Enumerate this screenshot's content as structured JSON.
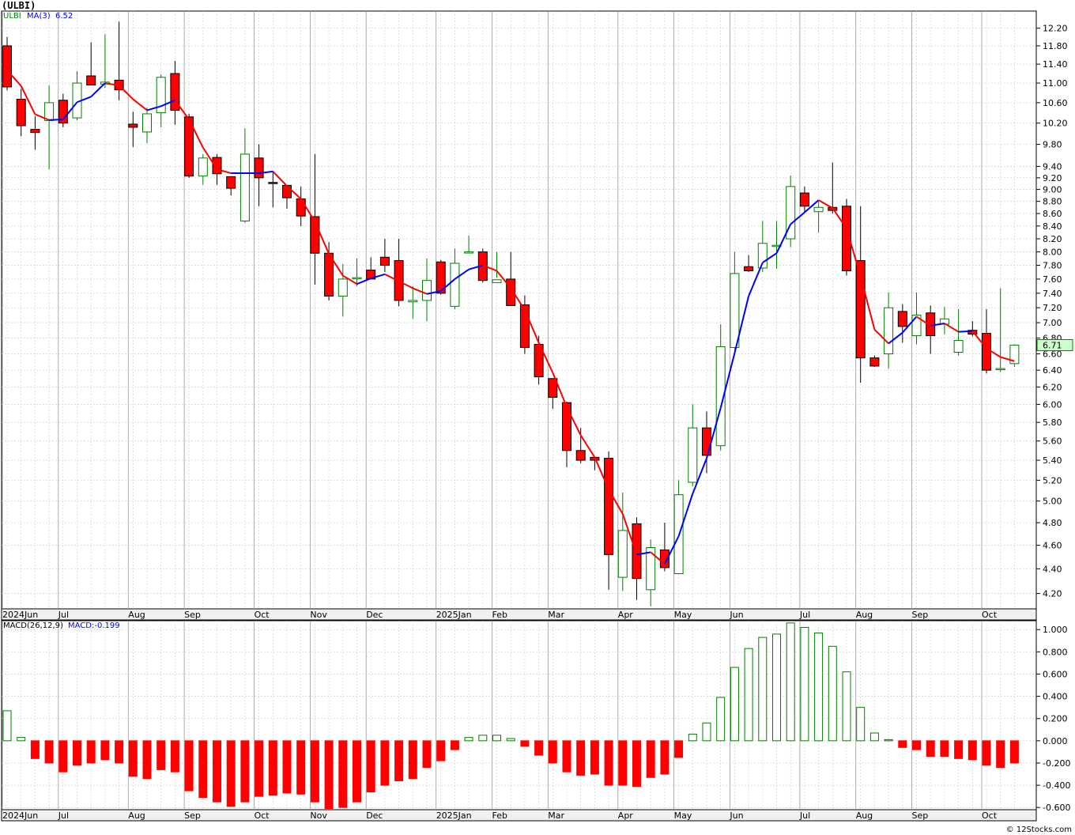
{
  "title": "(ULBI)",
  "credit": "© 12Stocks.com",
  "colors": {
    "up": "#008000",
    "down": "#ff0000",
    "ma_up": "#0000ff",
    "ma_down": "#ff0000",
    "grid": "#cccccc"
  },
  "legend": {
    "symbol": "ULBI",
    "ma_label": "MA(3)",
    "ma_value": "6.52",
    "macd_label": "MACD(26,12,9)",
    "macd_value": "MACD:-0.199"
  },
  "last_price": "6.71",
  "chart_data": [
    {
      "type": "candlestick",
      "title": "ULBI",
      "scale": "log",
      "ylim": [
        4.08,
        12.6
      ],
      "y_ticks": [
        "12.20",
        "11.80",
        "11.40",
        "11.00",
        "10.60",
        "10.20",
        "9.80",
        "9.40",
        "9.20",
        "9.00",
        "8.80",
        "8.60",
        "8.40",
        "8.20",
        "8.00",
        "7.80",
        "7.60",
        "7.40",
        "7.20",
        "7.00",
        "6.80",
        "6.60",
        "6.40",
        "6.20",
        "6.00",
        "5.80",
        "5.60",
        "5.40",
        "5.20",
        "5.00",
        "4.80",
        "4.60",
        "4.40",
        "4.20"
      ],
      "x_labels": [
        "2024Jun",
        "Jul",
        "Aug",
        "Sep",
        "Oct",
        "Nov",
        "Dec",
        "2025Jan",
        "Feb",
        "Mar",
        "Apr",
        "May",
        "Jun",
        "Jul",
        "Aug",
        "Sep",
        "Oct"
      ],
      "x_label_weeks": [
        0,
        4,
        9,
        13,
        18,
        22,
        26,
        31,
        35,
        39,
        44,
        48,
        52,
        57,
        61,
        65,
        70
      ],
      "candles": [
        {
          "o": 11.8,
          "h": 12.0,
          "l": 10.85,
          "c": 10.92
        },
        {
          "o": 10.67,
          "h": 10.88,
          "l": 9.95,
          "c": 10.15
        },
        {
          "o": 10.08,
          "h": 10.33,
          "l": 9.7,
          "c": 10.02
        },
        {
          "o": 10.25,
          "h": 10.95,
          "l": 9.35,
          "c": 10.6
        },
        {
          "o": 10.65,
          "h": 10.78,
          "l": 10.12,
          "c": 10.2
        },
        {
          "o": 10.3,
          "h": 11.25,
          "l": 10.25,
          "c": 11.0
        },
        {
          "o": 11.15,
          "h": 11.88,
          "l": 10.95,
          "c": 10.96
        },
        {
          "o": 10.98,
          "h": 12.06,
          "l": 10.9,
          "c": 11.02
        },
        {
          "o": 11.06,
          "h": 12.35,
          "l": 10.65,
          "c": 10.86
        },
        {
          "o": 10.18,
          "h": 10.42,
          "l": 9.75,
          "c": 10.12
        },
        {
          "o": 10.03,
          "h": 10.5,
          "l": 9.82,
          "c": 10.38
        },
        {
          "o": 10.4,
          "h": 11.18,
          "l": 10.12,
          "c": 11.12
        },
        {
          "o": 11.2,
          "h": 11.47,
          "l": 10.17,
          "c": 10.45
        },
        {
          "o": 10.32,
          "h": 10.38,
          "l": 9.2,
          "c": 9.23
        },
        {
          "o": 9.23,
          "h": 9.62,
          "l": 9.08,
          "c": 9.55
        },
        {
          "o": 9.56,
          "h": 9.62,
          "l": 9.08,
          "c": 9.27
        },
        {
          "o": 9.22,
          "h": 9.22,
          "l": 8.9,
          "c": 9.02
        },
        {
          "o": 8.48,
          "h": 10.1,
          "l": 8.45,
          "c": 9.62
        },
        {
          "o": 9.55,
          "h": 9.8,
          "l": 8.72,
          "c": 9.2
        },
        {
          "o": 9.12,
          "h": 9.32,
          "l": 8.7,
          "c": 9.1
        },
        {
          "o": 9.07,
          "h": 9.07,
          "l": 8.68,
          "c": 8.86
        },
        {
          "o": 8.84,
          "h": 9.05,
          "l": 8.4,
          "c": 8.56
        },
        {
          "o": 8.55,
          "h": 9.62,
          "l": 7.52,
          "c": 7.98
        },
        {
          "o": 7.98,
          "h": 8.15,
          "l": 7.3,
          "c": 7.36
        },
        {
          "o": 7.36,
          "h": 7.82,
          "l": 7.08,
          "c": 7.6
        },
        {
          "o": 7.62,
          "h": 7.9,
          "l": 7.5,
          "c": 7.62
        },
        {
          "o": 7.73,
          "h": 7.92,
          "l": 7.6,
          "c": 7.6
        },
        {
          "o": 7.92,
          "h": 8.2,
          "l": 7.7,
          "c": 7.8
        },
        {
          "o": 7.87,
          "h": 8.2,
          "l": 7.22,
          "c": 7.3
        },
        {
          "o": 7.28,
          "h": 7.5,
          "l": 7.05,
          "c": 7.3
        },
        {
          "o": 7.3,
          "h": 7.9,
          "l": 7.02,
          "c": 7.58
        },
        {
          "o": 7.85,
          "h": 7.88,
          "l": 7.38,
          "c": 7.4
        },
        {
          "o": 7.22,
          "h": 8.05,
          "l": 7.18,
          "c": 7.83
        },
        {
          "o": 8.0,
          "h": 8.25,
          "l": 8.0,
          "c": 8.0
        },
        {
          "o": 8.0,
          "h": 8.05,
          "l": 7.55,
          "c": 7.58
        },
        {
          "o": 7.55,
          "h": 8.0,
          "l": 7.62,
          "c": 7.59
        },
        {
          "o": 7.6,
          "h": 8.0,
          "l": 7.25,
          "c": 7.23
        },
        {
          "o": 7.24,
          "h": 7.37,
          "l": 6.6,
          "c": 6.68
        },
        {
          "o": 6.72,
          "h": 6.83,
          "l": 6.23,
          "c": 6.32
        },
        {
          "o": 6.3,
          "h": 6.3,
          "l": 5.95,
          "c": 6.08
        },
        {
          "o": 6.02,
          "h": 6.03,
          "l": 5.33,
          "c": 5.5
        },
        {
          "o": 5.5,
          "h": 5.74,
          "l": 5.37,
          "c": 5.4
        },
        {
          "o": 5.43,
          "h": 5.43,
          "l": 5.3,
          "c": 5.4
        },
        {
          "o": 5.42,
          "h": 5.49,
          "l": 4.23,
          "c": 4.52
        },
        {
          "o": 4.33,
          "h": 5.08,
          "l": 4.22,
          "c": 4.73
        },
        {
          "o": 4.79,
          "h": 4.85,
          "l": 4.15,
          "c": 4.32
        },
        {
          "o": 4.23,
          "h": 4.65,
          "l": 4.1,
          "c": 4.58
        },
        {
          "o": 4.56,
          "h": 4.8,
          "l": 4.38,
          "c": 4.41
        },
        {
          "o": 4.36,
          "h": 5.2,
          "l": 4.36,
          "c": 5.06
        },
        {
          "o": 5.18,
          "h": 6.0,
          "l": 5.14,
          "c": 5.74
        },
        {
          "o": 5.74,
          "h": 5.92,
          "l": 5.27,
          "c": 5.45
        },
        {
          "o": 5.55,
          "h": 6.98,
          "l": 5.5,
          "c": 6.69
        },
        {
          "o": 6.68,
          "h": 8.0,
          "l": 6.66,
          "c": 7.68
        },
        {
          "o": 7.78,
          "h": 7.95,
          "l": 7.7,
          "c": 7.72
        },
        {
          "o": 7.76,
          "h": 8.48,
          "l": 7.7,
          "c": 8.13
        },
        {
          "o": 8.1,
          "h": 8.48,
          "l": 7.75,
          "c": 8.1
        },
        {
          "o": 8.2,
          "h": 9.24,
          "l": 8.07,
          "c": 9.05
        },
        {
          "o": 8.94,
          "h": 9.05,
          "l": 8.62,
          "c": 8.72
        },
        {
          "o": 8.63,
          "h": 8.8,
          "l": 8.3,
          "c": 8.7
        },
        {
          "o": 8.7,
          "h": 9.47,
          "l": 8.6,
          "c": 8.65
        },
        {
          "o": 8.72,
          "h": 8.84,
          "l": 7.65,
          "c": 7.72
        },
        {
          "o": 7.87,
          "h": 8.72,
          "l": 6.25,
          "c": 6.55
        },
        {
          "o": 6.55,
          "h": 6.58,
          "l": 6.44,
          "c": 6.45
        },
        {
          "o": 6.6,
          "h": 7.41,
          "l": 6.42,
          "c": 7.2
        },
        {
          "o": 7.15,
          "h": 7.25,
          "l": 6.74,
          "c": 6.95
        },
        {
          "o": 6.83,
          "h": 7.41,
          "l": 6.72,
          "c": 7.1
        },
        {
          "o": 7.13,
          "h": 7.23,
          "l": 6.6,
          "c": 6.83
        },
        {
          "o": 6.98,
          "h": 7.21,
          "l": 6.85,
          "c": 7.05
        },
        {
          "o": 6.62,
          "h": 7.18,
          "l": 6.58,
          "c": 6.77
        },
        {
          "o": 6.9,
          "h": 7.02,
          "l": 6.82,
          "c": 6.85
        },
        {
          "o": 6.86,
          "h": 7.18,
          "l": 6.36,
          "c": 6.4
        },
        {
          "o": 6.42,
          "h": 7.47,
          "l": 6.38,
          "c": 6.42
        },
        {
          "o": 6.48,
          "h": 6.72,
          "l": 6.44,
          "c": 6.71
        }
      ],
      "ma3": [
        11.27,
        10.94,
        10.37,
        10.26,
        10.27,
        10.61,
        10.72,
        11.0,
        10.95,
        10.67,
        10.45,
        10.53,
        10.65,
        10.27,
        9.74,
        9.35,
        9.28,
        9.28,
        9.28,
        9.31,
        9.06,
        8.84,
        8.47,
        7.97,
        7.65,
        7.53,
        7.61,
        7.67,
        7.57,
        7.47,
        7.39,
        7.43,
        7.6,
        7.74,
        7.8,
        7.72,
        7.47,
        7.17,
        6.74,
        6.37,
        5.97,
        5.66,
        5.43,
        5.11,
        4.88,
        4.52,
        4.54,
        4.44,
        4.68,
        5.07,
        5.42,
        5.96,
        6.61,
        7.36,
        7.84,
        7.98,
        8.43,
        8.62,
        8.82,
        8.69,
        8.36,
        7.64,
        6.91,
        6.73,
        6.87,
        7.08,
        6.96,
        6.99,
        6.88,
        6.89,
        6.67,
        6.56,
        6.51
      ]
    },
    {
      "type": "bar",
      "title": "MACD(26,12,9)",
      "ylim": [
        -0.62,
        1.08
      ],
      "y_ticks": [
        "1.000",
        "0.800",
        "0.600",
        "0.400",
        "0.200",
        "0.000",
        "-0.200",
        "-0.400",
        "-0.600"
      ],
      "x_labels": [
        "2024Jun",
        "Jul",
        "Aug",
        "Sep",
        "Oct",
        "Nov",
        "Dec",
        "2025Jan",
        "Feb",
        "Mar",
        "Apr",
        "May",
        "Jun",
        "Jul",
        "Aug",
        "Sep",
        "Oct"
      ],
      "values": [
        0.27,
        0.03,
        -0.16,
        -0.2,
        -0.28,
        -0.22,
        -0.2,
        -0.17,
        -0.2,
        -0.32,
        -0.34,
        -0.26,
        -0.28,
        -0.45,
        -0.51,
        -0.55,
        -0.59,
        -0.55,
        -0.5,
        -0.49,
        -0.47,
        -0.48,
        -0.55,
        -0.61,
        -0.6,
        -0.55,
        -0.46,
        -0.4,
        -0.36,
        -0.34,
        -0.24,
        -0.18,
        -0.08,
        0.03,
        0.05,
        0.05,
        0.02,
        -0.05,
        -0.13,
        -0.2,
        -0.28,
        -0.31,
        -0.3,
        -0.4,
        -0.4,
        -0.41,
        -0.33,
        -0.3,
        -0.15,
        0.06,
        0.16,
        0.39,
        0.66,
        0.83,
        0.93,
        0.96,
        1.06,
        1.02,
        0.97,
        0.85,
        0.62,
        0.3,
        0.07,
        0.01,
        -0.06,
        -0.08,
        -0.14,
        -0.14,
        -0.16,
        -0.17,
        -0.22,
        -0.24,
        -0.2
      ]
    }
  ]
}
